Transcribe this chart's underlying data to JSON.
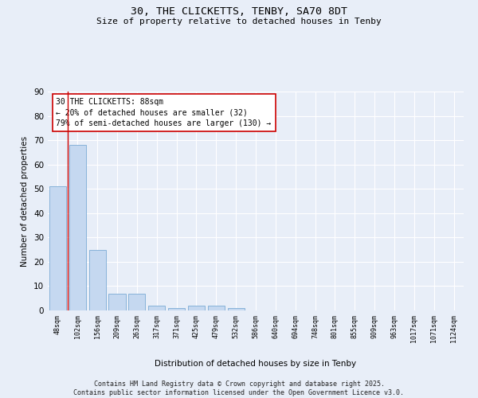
{
  "title_line1": "30, THE CLICKETTS, TENBY, SA70 8DT",
  "title_line2": "Size of property relative to detached houses in Tenby",
  "xlabel": "Distribution of detached houses by size in Tenby",
  "ylabel": "Number of detached properties",
  "categories": [
    "48sqm",
    "102sqm",
    "156sqm",
    "209sqm",
    "263sqm",
    "317sqm",
    "371sqm",
    "425sqm",
    "479sqm",
    "532sqm",
    "586sqm",
    "640sqm",
    "694sqm",
    "748sqm",
    "801sqm",
    "855sqm",
    "909sqm",
    "963sqm",
    "1017sqm",
    "1071sqm",
    "1124sqm"
  ],
  "values": [
    51,
    68,
    25,
    7,
    7,
    2,
    1,
    2,
    2,
    1,
    0,
    0,
    0,
    0,
    0,
    0,
    0,
    0,
    0,
    0,
    0
  ],
  "bar_color": "#c5d8f0",
  "bar_edge_color": "#7aaad4",
  "background_color": "#e8eef8",
  "grid_color": "#ffffff",
  "annotation_text": "30 THE CLICKETTS: 88sqm\n← 20% of detached houses are smaller (32)\n79% of semi-detached houses are larger (130) →",
  "annotation_box_color": "#ffffff",
  "annotation_box_edge_color": "#cc0000",
  "vline_color": "#cc0000",
  "vline_x": 0.5,
  "ylim": [
    0,
    90
  ],
  "yticks": [
    0,
    10,
    20,
    30,
    40,
    50,
    60,
    70,
    80,
    90
  ],
  "footer": "Contains HM Land Registry data © Crown copyright and database right 2025.\nContains public sector information licensed under the Open Government Licence v3.0.",
  "property_bin_index": 1
}
